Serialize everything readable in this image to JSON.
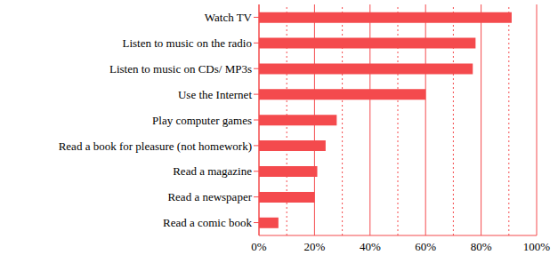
{
  "chart_data": {
    "type": "bar",
    "orientation": "horizontal",
    "categories": [
      "Watch TV",
      "Listen to music on the radio",
      "Listen to music on CDs/ MP3s",
      "Use the Internet",
      "Play computer games",
      "Read a book for pleasure (not homework)",
      "Read a magazine",
      "Read a newspaper",
      "Read a comic book"
    ],
    "values": [
      91,
      78,
      77,
      60,
      28,
      24,
      21,
      20,
      7
    ],
    "color": "#f44a4d",
    "xlim": [
      0,
      100
    ],
    "xticks": [
      {
        "value": 0,
        "label": "0%"
      },
      {
        "value": 20,
        "label": "20%"
      },
      {
        "value": 40,
        "label": "40%"
      },
      {
        "value": 60,
        "label": "60%"
      },
      {
        "value": 80,
        "label": "80%"
      },
      {
        "value": 100,
        "label": "100%"
      }
    ],
    "grid": true
  }
}
